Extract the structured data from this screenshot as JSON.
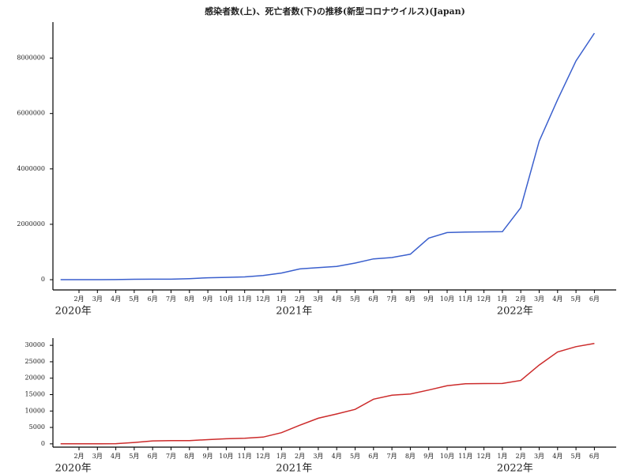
{
  "chart_data": [
    {
      "type": "line",
      "title": "感染者数(上)、死亡者数(下)の推移(新型コロナウイルス)(Japan)",
      "x": [
        "2020-01",
        "2020-02",
        "2020-03",
        "2020-04",
        "2020-05",
        "2020-06",
        "2020-07",
        "2020-08",
        "2020-09",
        "2020-10",
        "2020-11",
        "2020-12",
        "2021-01",
        "2021-02",
        "2021-03",
        "2021-04",
        "2021-05",
        "2021-06",
        "2021-07",
        "2021-08",
        "2021-09",
        "2021-10",
        "2021-11",
        "2021-12",
        "2022-01",
        "2022-02",
        "2022-03",
        "2022-04",
        "2022-05",
        "2022-06"
      ],
      "values": [
        0,
        20,
        250,
        2500,
        14000,
        17000,
        19000,
        37000,
        68000,
        83000,
        102000,
        150000,
        240000,
        390000,
        433000,
        478000,
        600000,
        750000,
        800000,
        920000,
        1500000,
        1700000,
        1720000,
        1727000,
        1733000,
        2600000,
        5000000,
        6500000,
        7900000,
        8900000
      ],
      "color": "#3a5fcd",
      "xlim": [
        "2020-01",
        "2022-06"
      ],
      "xticks": [
        {
          "value": "2020-02",
          "label": "2月"
        },
        {
          "value": "2020-03",
          "label": "3月"
        },
        {
          "value": "2020-04",
          "label": "4月"
        },
        {
          "value": "2020-05",
          "label": "5月"
        },
        {
          "value": "2020-06",
          "label": "6月"
        },
        {
          "value": "2020-07",
          "label": "7月"
        },
        {
          "value": "2020-08",
          "label": "8月"
        },
        {
          "value": "2020-09",
          "label": "9月"
        },
        {
          "value": "2020-10",
          "label": "10月"
        },
        {
          "value": "2020-11",
          "label": "11月"
        },
        {
          "value": "2020-12",
          "label": "12月"
        },
        {
          "value": "2021-01",
          "label": "1月"
        },
        {
          "value": "2021-02",
          "label": "2月"
        },
        {
          "value": "2021-03",
          "label": "3月"
        },
        {
          "value": "2021-04",
          "label": "4月"
        },
        {
          "value": "2021-05",
          "label": "5月"
        },
        {
          "value": "2021-06",
          "label": "6月"
        },
        {
          "value": "2021-07",
          "label": "7月"
        },
        {
          "value": "2021-08",
          "label": "8月"
        },
        {
          "value": "2021-09",
          "label": "9月"
        },
        {
          "value": "2021-10",
          "label": "10月"
        },
        {
          "value": "2021-11",
          "label": "11月"
        },
        {
          "value": "2021-12",
          "label": "12月"
        },
        {
          "value": "2022-01",
          "label": "1月"
        },
        {
          "value": "2022-02",
          "label": "2月"
        },
        {
          "value": "2022-03",
          "label": "3月"
        },
        {
          "value": "2022-04",
          "label": "4月"
        },
        {
          "value": "2022-05",
          "label": "5月"
        },
        {
          "value": "2022-06",
          "label": "6月"
        }
      ],
      "year_labels": [
        {
          "value": "2020-01",
          "label": "2020年"
        },
        {
          "value": "2021-01",
          "label": "2021年"
        },
        {
          "value": "2022-01",
          "label": "2022年"
        }
      ],
      "ylim": [
        -370000,
        9300000
      ],
      "yticks": [
        0,
        2000000,
        4000000,
        6000000,
        8000000
      ]
    },
    {
      "type": "line",
      "x": [
        "2020-01",
        "2020-02",
        "2020-03",
        "2020-04",
        "2020-05",
        "2020-06",
        "2020-07",
        "2020-08",
        "2020-09",
        "2020-10",
        "2020-11",
        "2020-12",
        "2021-01",
        "2021-02",
        "2021-03",
        "2021-04",
        "2021-05",
        "2021-06",
        "2021-07",
        "2021-08",
        "2021-09",
        "2021-10",
        "2021-11",
        "2021-12",
        "2022-01",
        "2022-02",
        "2022-03",
        "2022-04",
        "2022-05",
        "2022-06"
      ],
      "values": [
        0,
        0,
        6,
        57,
        430,
        890,
        972,
        1000,
        1280,
        1560,
        1720,
        2060,
        3400,
        5700,
        7800,
        9100,
        10500,
        13600,
        14800,
        15200,
        16400,
        17700,
        18300,
        18370,
        18400,
        19300,
        24000,
        28000,
        29600,
        30600
      ],
      "color": "#cc2b2b",
      "xlim": [
        "2020-01",
        "2022-06"
      ],
      "xticks": [
        {
          "value": "2020-02",
          "label": "2月"
        },
        {
          "value": "2020-03",
          "label": "3月"
        },
        {
          "value": "2020-04",
          "label": "4月"
        },
        {
          "value": "2020-05",
          "label": "5月"
        },
        {
          "value": "2020-06",
          "label": "6月"
        },
        {
          "value": "2020-07",
          "label": "7月"
        },
        {
          "value": "2020-08",
          "label": "8月"
        },
        {
          "value": "2020-09",
          "label": "9月"
        },
        {
          "value": "2020-10",
          "label": "10月"
        },
        {
          "value": "2020-11",
          "label": "11月"
        },
        {
          "value": "2020-12",
          "label": "12月"
        },
        {
          "value": "2021-01",
          "label": "1月"
        },
        {
          "value": "2021-02",
          "label": "2月"
        },
        {
          "value": "2021-03",
          "label": "3月"
        },
        {
          "value": "2021-04",
          "label": "4月"
        },
        {
          "value": "2021-05",
          "label": "5月"
        },
        {
          "value": "2021-06",
          "label": "6月"
        },
        {
          "value": "2021-07",
          "label": "7月"
        },
        {
          "value": "2021-08",
          "label": "8月"
        },
        {
          "value": "2021-09",
          "label": "9月"
        },
        {
          "value": "2021-10",
          "label": "10月"
        },
        {
          "value": "2021-11",
          "label": "11月"
        },
        {
          "value": "2021-12",
          "label": "12月"
        },
        {
          "value": "2022-01",
          "label": "1月"
        },
        {
          "value": "2022-02",
          "label": "2月"
        },
        {
          "value": "2022-03",
          "label": "3月"
        },
        {
          "value": "2022-04",
          "label": "4月"
        },
        {
          "value": "2022-05",
          "label": "5月"
        },
        {
          "value": "2022-06",
          "label": "6月"
        }
      ],
      "year_labels": [
        {
          "value": "2020-01",
          "label": "2020年"
        },
        {
          "value": "2021-01",
          "label": "2021年"
        },
        {
          "value": "2022-01",
          "label": "2022年"
        }
      ],
      "ylim": [
        -1000,
        32200
      ],
      "yticks": [
        0,
        5000,
        10000,
        15000,
        20000,
        25000,
        30000
      ]
    }
  ]
}
